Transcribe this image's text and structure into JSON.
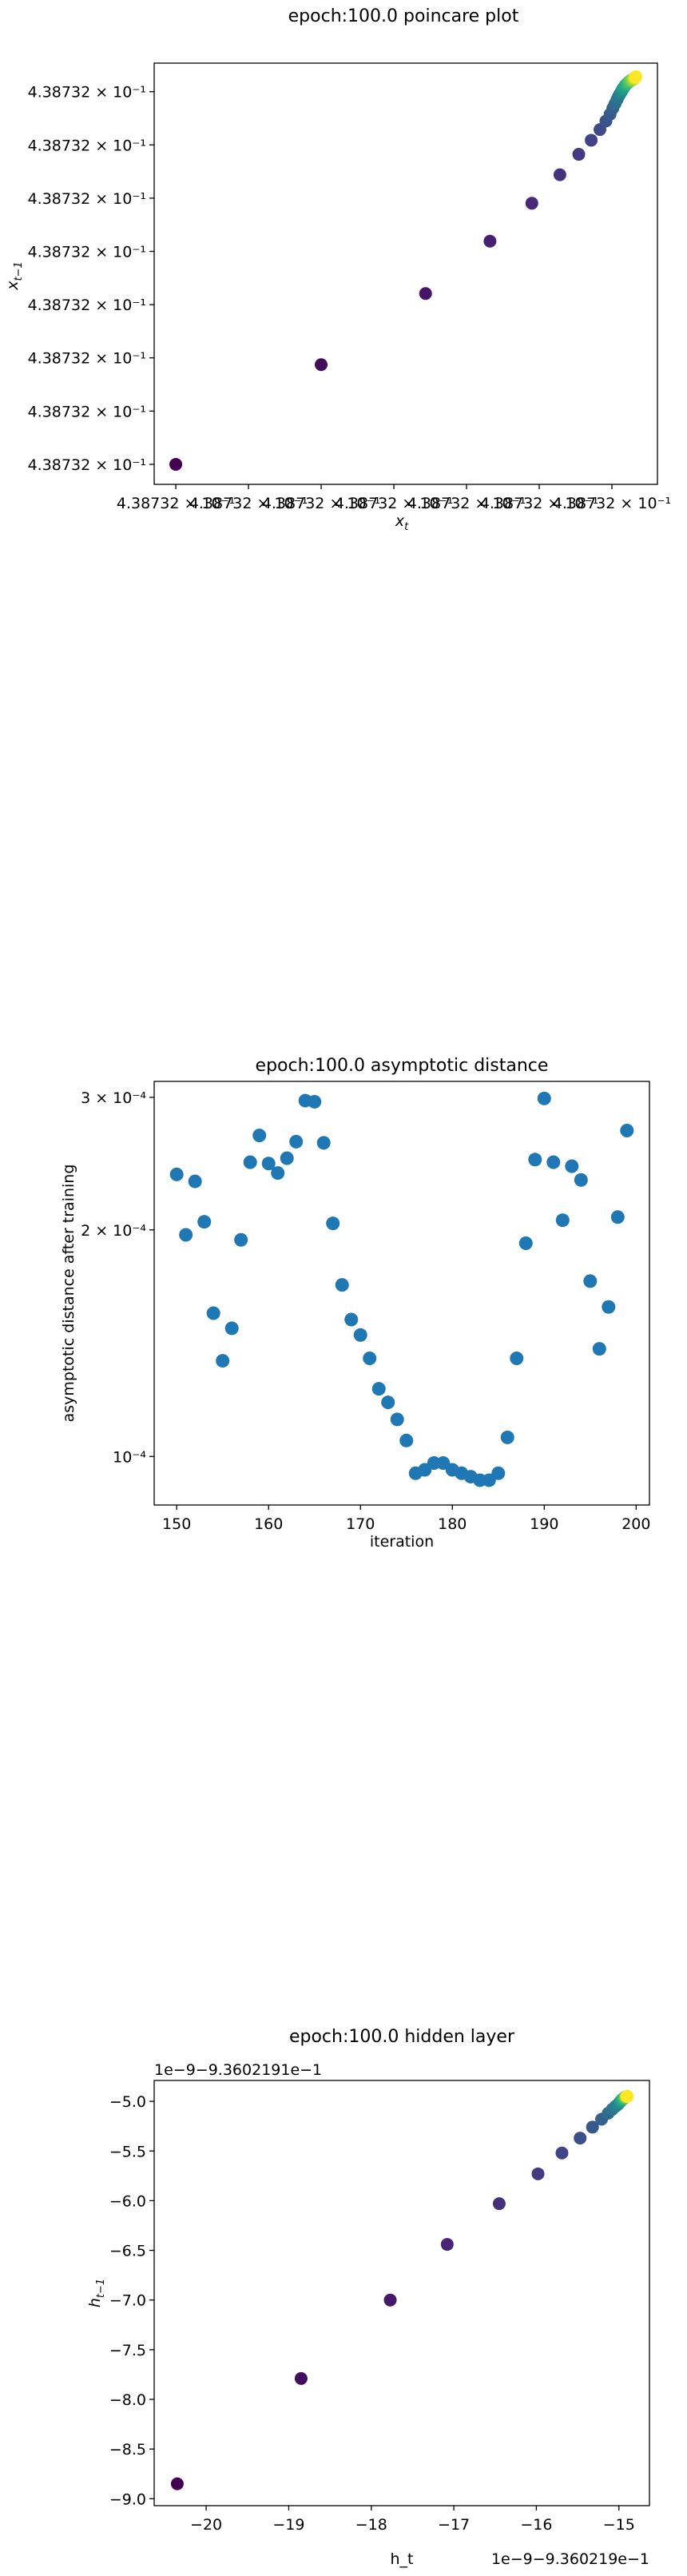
{
  "chart_data": [
    {
      "type": "scatter",
      "title": "epoch:100.0 poincare plot",
      "xlabel_base": "x",
      "xlabel_sub": "t",
      "ylabel_base": "x",
      "ylabel_sub": "t−1",
      "x_tick_labels": [
        "4.38732 × 10⁻¹",
        "4.38732 × 10⁻¹",
        "4.38732 × 10⁻¹",
        "4.38732 × 10⁻¹",
        "4.38732 × 10⁻¹",
        "4.38732 × 10⁻¹",
        "4.38732 × 10⁻¹"
      ],
      "y_tick_labels": [
        "4.38732 × 10⁻¹",
        "4.38732 × 10⁻¹",
        "4.38732 × 10⁻¹",
        "4.38732 × 10⁻¹",
        "4.38732 × 10⁻¹",
        "4.38732 × 10⁻¹",
        "4.38732 × 10⁻¹",
        "4.38732 × 10⁻¹"
      ],
      "x_tick_values": [
        0.0,
        0.158,
        0.316,
        0.474,
        0.632,
        0.79,
        0.948
      ],
      "y_tick_values": [
        0.0,
        0.125,
        0.25,
        0.375,
        0.5,
        0.625,
        0.75,
        0.875
      ],
      "xlim": [
        -0.047,
        1.047
      ],
      "ylim": [
        -0.047,
        0.942
      ],
      "colormap": "viridis",
      "x": [
        0.0,
        0.316,
        0.543,
        0.683,
        0.774,
        0.835,
        0.876,
        0.903,
        0.922,
        0.935,
        0.944,
        0.95,
        0.955,
        0.959,
        0.962,
        0.965,
        0.968,
        0.97,
        0.972,
        0.974,
        0.976,
        0.978,
        0.98,
        0.982,
        0.984,
        0.986,
        0.988,
        0.99,
        0.992,
        0.994,
        0.995,
        0.996,
        0.997,
        0.998,
        0.999,
        1.0
      ],
      "y": [
        0.0,
        0.234,
        0.401,
        0.524,
        0.613,
        0.68,
        0.728,
        0.761,
        0.786,
        0.806,
        0.822,
        0.836,
        0.847,
        0.856,
        0.863,
        0.869,
        0.874,
        0.878,
        0.882,
        0.885,
        0.888,
        0.891,
        0.893,
        0.895,
        0.897,
        0.899,
        0.901,
        0.902,
        0.903,
        0.904,
        0.905,
        0.906,
        0.907,
        0.908,
        0.909,
        0.91
      ]
    },
    {
      "type": "scatter",
      "title": "epoch:100.0 asymptotic distance",
      "xlabel": "iteration",
      "ylabel": "asymptotic distance after training",
      "x_ticks": [
        150,
        160,
        170,
        180,
        190,
        200
      ],
      "y_ticks": [
        0.0001,
        0.0002,
        0.0003
      ],
      "y_tick_labels": [
        "10⁻⁴",
        "2 × 10⁻⁴",
        "3 × 10⁻⁴"
      ],
      "y_scale": "log",
      "xlim": [
        147.55,
        201.45
      ],
      "ylim": [
        8.62e-05,
        0.000315
      ],
      "color": "#1f77b4",
      "x": [
        150,
        151,
        152,
        153,
        154,
        155,
        156,
        157,
        158,
        159,
        160,
        161,
        162,
        163,
        164,
        165,
        166,
        167,
        168,
        169,
        170,
        171,
        172,
        173,
        174,
        175,
        176,
        177,
        178,
        179,
        180,
        181,
        182,
        183,
        184,
        185,
        186,
        187,
        188,
        189,
        190,
        191,
        192,
        193,
        194,
        195,
        196,
        197,
        198,
        199
      ],
      "y": [
        0.000237,
        0.000197,
        0.000232,
        0.000205,
        0.000155,
        0.000134,
        0.000148,
        0.000194,
        0.000246,
        0.000267,
        0.000245,
        0.000238,
        0.000249,
        0.000262,
        0.000297,
        0.000296,
        0.000261,
        0.000204,
        0.000169,
        0.000152,
        0.000145,
        0.000135,
        0.000123,
        0.000118,
        0.000112,
        0.000105,
        9.5e-05,
        9.6e-05,
        9.8e-05,
        9.8e-05,
        9.6e-05,
        9.5e-05,
        9.4e-05,
        9.3e-05,
        9.3e-05,
        9.5e-05,
        0.000106,
        0.000135,
        0.000192,
        0.000248,
        0.000299,
        0.000246,
        0.000206,
        0.000243,
        0.000233,
        0.000171,
        0.000139,
        0.000158,
        0.000208,
        0.000271
      ]
    },
    {
      "type": "scatter",
      "title": "epoch:100.0 hidden layer",
      "xlabel": "h_t",
      "ylabel_base": "h",
      "ylabel_sub": "t−1",
      "x_offset_text": "1e−9−9.360219e−1",
      "y_offset_text": "1e−9−9.3602191e−1",
      "x_ticks": [
        -20,
        -19,
        -18,
        -17,
        -16,
        -15
      ],
      "x_tick_labels": [
        "−20",
        "−19",
        "−18",
        "−17",
        "−16",
        "−15"
      ],
      "y_ticks": [
        -9.0,
        -8.5,
        -8.0,
        -7.5,
        -7.0,
        -6.5,
        -6.0,
        -5.5,
        -5.0
      ],
      "y_tick_labels": [
        "−9.0",
        "−8.5",
        "−8.0",
        "−7.5",
        "−7.0",
        "−6.5",
        "−6.0",
        "−5.5",
        "−5.0"
      ],
      "xlim": [
        -20.63,
        -14.63
      ],
      "ylim": [
        -9.07,
        -4.79
      ],
      "colormap": "viridis",
      "x": [
        -20.35,
        -18.85,
        -17.77,
        -17.08,
        -16.45,
        -15.98,
        -15.69,
        -15.47,
        -15.32,
        -15.21,
        -15.13,
        -15.08,
        -15.04,
        -15.01,
        -14.99,
        -14.98,
        -14.97,
        -14.96,
        -14.95,
        -14.94,
        -14.93,
        -14.93,
        -14.92,
        -14.92,
        -14.91,
        -14.91,
        -14.91,
        -14.9,
        -14.9,
        -14.9
      ],
      "y": [
        -8.85,
        -7.79,
        -7.0,
        -6.44,
        -6.03,
        -5.73,
        -5.52,
        -5.37,
        -5.26,
        -5.18,
        -5.12,
        -5.08,
        -5.05,
        -5.03,
        -5.01,
        -5.0,
        -4.99,
        -4.98,
        -4.975,
        -4.97,
        -4.965,
        -4.96,
        -4.958,
        -4.956,
        -4.954,
        -4.952,
        -4.951,
        -4.95,
        -4.95,
        -4.95
      ]
    }
  ]
}
